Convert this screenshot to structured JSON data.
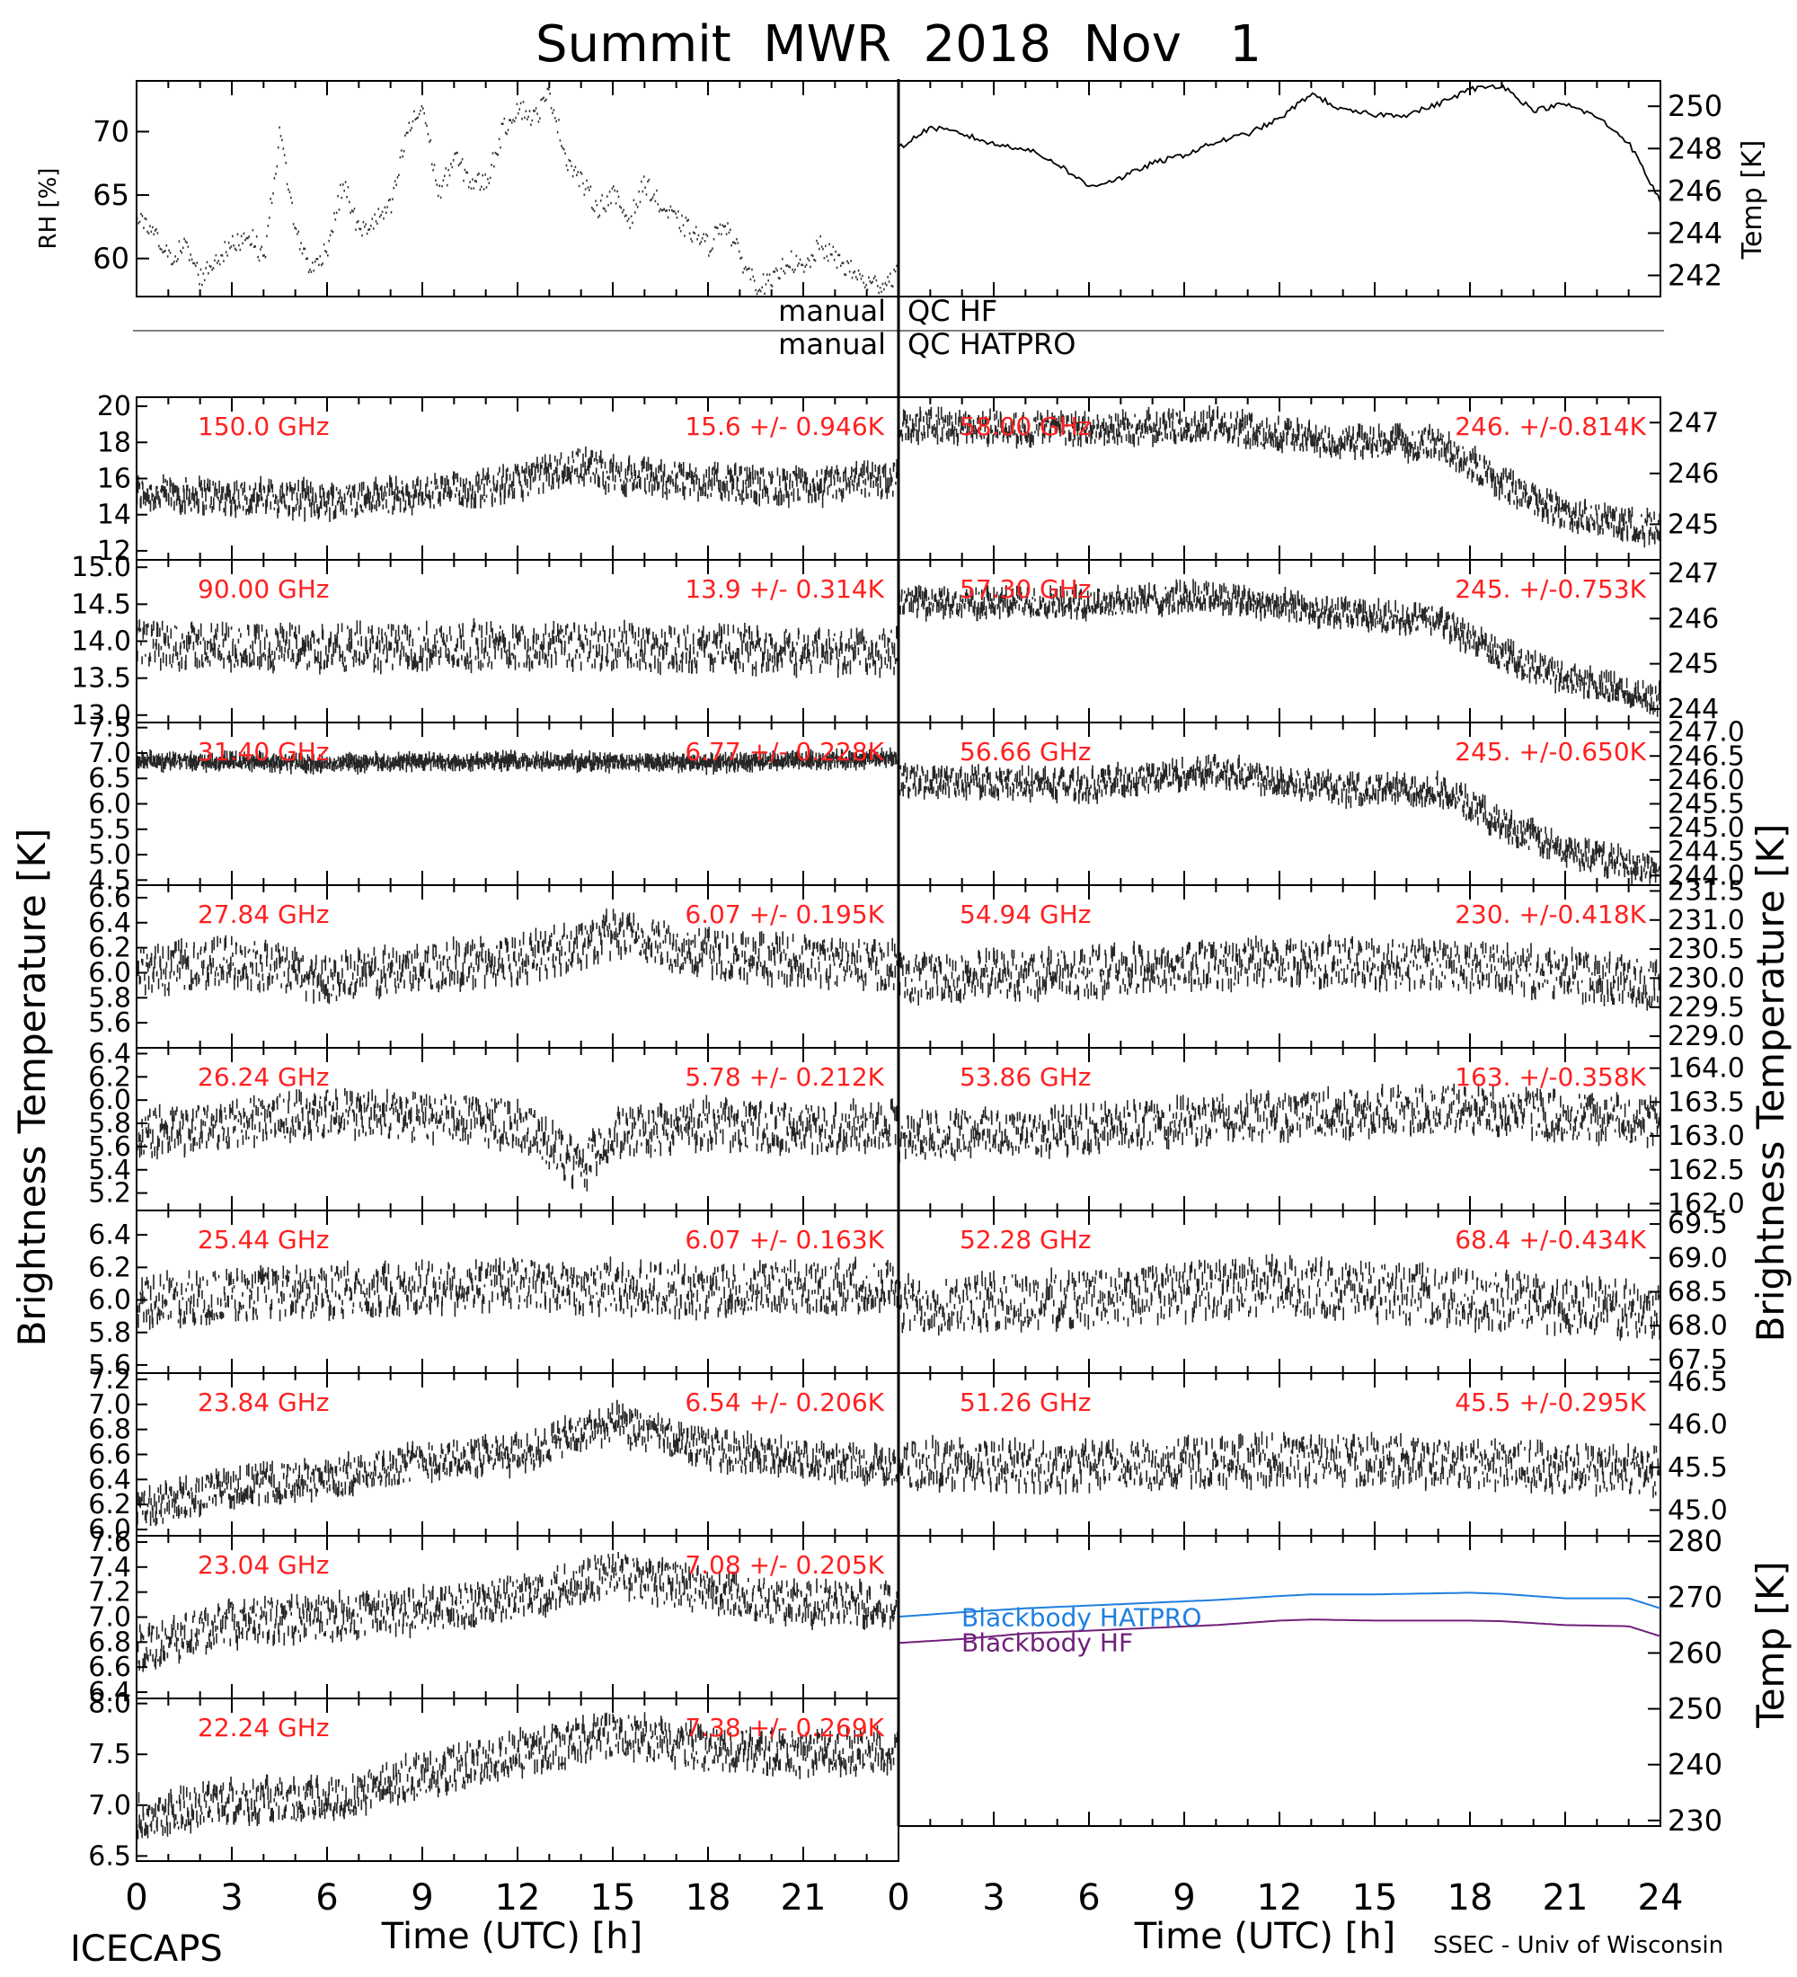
{
  "title": "Summit  MWR  2018  Nov   1",
  "footer_left": "ICECAPS",
  "footer_right": "SSEC - Univ of Wisconsin",
  "xlabel": "Time  (UTC)  [h]",
  "x_ticks_left": [
    "0",
    "3",
    "6",
    "9",
    "12",
    "15",
    "18",
    "21"
  ],
  "x_ticks_right": [
    "0",
    "3",
    "6",
    "9",
    "12",
    "15",
    "18",
    "21",
    "24"
  ],
  "side_label_left": "Brightness  Temperature  [K]",
  "side_label_right": "Brightness  Temperature  [K]",
  "rh_label": "RH [%]",
  "temp_label": "Temp [K]",
  "bb_temp_label": "Temp  [K]",
  "qc_hf": "QC HF",
  "qc_hatpro": "QC HATPRO",
  "qc_manual_1": "manual",
  "qc_manual_2": "manual",
  "colors": {
    "label_red": "#ff2020",
    "hatpro_blue": "#1f7fe0",
    "hf_purple": "#70207a",
    "trace": "#000000"
  },
  "chart_data": [
    {
      "id": "rh",
      "type": "line",
      "ylabel": "RH [%]",
      "ylim": [
        57,
        74
      ],
      "yticks": [
        "60",
        "65",
        "70"
      ],
      "xlim": [
        0,
        24
      ],
      "series": [
        {
          "x": [
            0,
            0.5,
            1,
            1.5,
            2,
            2.5,
            3,
            3.5,
            4,
            4.5,
            5,
            5.5,
            6,
            6.5,
            7,
            7.5,
            8,
            8.5,
            9,
            9.5,
            10,
            10.5,
            11,
            11.5,
            12,
            12.5,
            13,
            13.5,
            14,
            14.5,
            15,
            15.5,
            16,
            16.5,
            17,
            17.5,
            18,
            18.5,
            19,
            19.5,
            20,
            20.5,
            21,
            21.5,
            22,
            22.5,
            23,
            23.5,
            24
          ],
          "values": [
            63,
            62,
            60,
            61,
            58.5,
            60,
            61,
            62,
            60,
            70,
            62,
            59,
            61,
            66,
            62,
            63,
            64,
            70,
            72,
            65,
            68,
            66,
            66,
            70,
            72,
            71,
            73,
            68,
            66,
            64,
            65,
            63,
            66,
            64,
            63,
            62,
            61,
            63,
            60,
            58,
            58,
            60,
            59,
            61,
            60,
            59,
            58,
            58,
            59
          ]
        }
      ]
    },
    {
      "id": "temp",
      "type": "line",
      "ylabel": "Temp [K]",
      "ylim": [
        241,
        251.2
      ],
      "yticks": [
        "242",
        "244",
        "246",
        "248",
        "250"
      ],
      "xlim": [
        0,
        24
      ],
      "series": [
        {
          "x": [
            0,
            1,
            2,
            3,
            4,
            5,
            6,
            7,
            8,
            9,
            10,
            11,
            12,
            13,
            14,
            15,
            16,
            17,
            18,
            19,
            20,
            21,
            22,
            23,
            24
          ],
          "values": [
            248,
            249,
            248.7,
            248.2,
            248,
            247.3,
            246.2,
            246.6,
            247.3,
            247.7,
            248.3,
            248.7,
            249.4,
            250.6,
            249.8,
            249.6,
            249.6,
            250.1,
            250.8,
            251,
            249.8,
            250.1,
            249.5,
            248.3,
            245.5
          ]
        }
      ]
    },
    {
      "id": "ch-150-00",
      "type": "scatter",
      "side": "left",
      "row": 0,
      "freq_label": "150.0 GHz",
      "stats_label": "15.6  +/- 0.946K",
      "ylim": [
        11.5,
        20.5
      ],
      "yticks": [
        12,
        14,
        16,
        18,
        20
      ],
      "ytick_labels": [
        "12",
        "14",
        "16",
        "18",
        "20"
      ],
      "xlim": [
        0,
        24
      ],
      "trend": {
        "x": [
          0,
          3,
          6,
          9,
          12,
          14,
          15,
          18,
          21,
          24
        ],
        "values": [
          15.2,
          15,
          14.8,
          15.1,
          15.8,
          16.8,
          16.2,
          15.8,
          15.5,
          16
        ]
      },
      "noise": 0.946
    },
    {
      "id": "ch-90-00",
      "type": "scatter",
      "side": "left",
      "row": 1,
      "freq_label": "90.00 GHz",
      "stats_label": "13.9  +/- 0.314K",
      "ylim": [
        12.9,
        15.1
      ],
      "yticks": [
        13,
        13.5,
        14,
        14.5,
        15
      ],
      "ytick_labels": [
        "13.0",
        "13.5",
        "14.0",
        "14.5",
        "15.0"
      ],
      "xlim": [
        0,
        24
      ],
      "trend": {
        "x": [
          0,
          6,
          12,
          18,
          24
        ],
        "values": [
          13.95,
          13.9,
          13.95,
          13.9,
          13.85
        ]
      },
      "noise": 0.314
    },
    {
      "id": "ch-31-40",
      "type": "scatter",
      "side": "left",
      "row": 2,
      "freq_label": "31.40 GHz",
      "stats_label": "6.77  +/- 0.228K",
      "ylim": [
        4.4,
        7.6
      ],
      "yticks": [
        4.5,
        5,
        5.5,
        6,
        6.5,
        7,
        7.5
      ],
      "ytick_labels": [
        "4.5",
        "5.0",
        "5.5",
        "6.0",
        "6.5",
        "7.0",
        "7.5"
      ],
      "xlim": [
        0,
        24
      ],
      "trend": {
        "x": [
          0,
          6,
          12,
          18,
          24
        ],
        "values": [
          6.85,
          6.8,
          6.85,
          6.8,
          6.9
        ]
      },
      "noise": 0.1
    },
    {
      "id": "ch-27-84",
      "type": "scatter",
      "side": "left",
      "row": 3,
      "freq_label": "27.84 GHz",
      "stats_label": "6.07  +/- 0.195K",
      "ylim": [
        5.4,
        6.7
      ],
      "yticks": [
        5.6,
        5.8,
        6,
        6.2,
        6.4,
        6.6
      ],
      "ytick_labels": [
        "5.6",
        "5.8",
        "6.0",
        "6.2",
        "6.4",
        "6.6"
      ],
      "xlim": [
        0,
        24
      ],
      "trend": {
        "x": [
          0,
          3,
          6,
          9,
          12,
          15,
          18,
          21,
          24
        ],
        "values": [
          6,
          6.1,
          5.95,
          6.05,
          6.1,
          6.3,
          6.15,
          6.1,
          6.05
        ]
      },
      "noise": 0.195
    },
    {
      "id": "ch-26-24",
      "type": "scatter",
      "side": "left",
      "row": 4,
      "freq_label": "26.24 GHz",
      "stats_label": "5.78  +/- 0.212K",
      "ylim": [
        5.05,
        6.45
      ],
      "yticks": [
        5.2,
        5.4,
        5.6,
        5.8,
        6,
        6.2,
        6.4
      ],
      "ytick_labels": [
        "5.2",
        "5.4",
        "5.6",
        "5.8",
        "6.0",
        "6.2",
        "6.4"
      ],
      "xlim": [
        0,
        24
      ],
      "trend": {
        "x": [
          0,
          3,
          6,
          9,
          12,
          14,
          15,
          18,
          21,
          24
        ],
        "values": [
          5.7,
          5.8,
          5.9,
          5.85,
          5.8,
          5.4,
          5.7,
          5.8,
          5.75,
          5.8
        ]
      },
      "noise": 0.212
    },
    {
      "id": "ch-25-44",
      "type": "scatter",
      "side": "left",
      "row": 5,
      "freq_label": "25.44 GHz",
      "stats_label": "6.07  +/- 0.163K",
      "ylim": [
        5.55,
        6.55
      ],
      "yticks": [
        5.6,
        5.8,
        6,
        6.2,
        6.4
      ],
      "ytick_labels": [
        "5.6",
        "5.8",
        "6.0",
        "6.2",
        "6.4"
      ],
      "xlim": [
        0,
        24
      ],
      "trend": {
        "x": [
          0,
          6,
          12,
          18,
          24
        ],
        "values": [
          6,
          6.05,
          6.1,
          6.05,
          6.1
        ]
      },
      "noise": 0.163
    },
    {
      "id": "ch-23-84",
      "type": "scatter",
      "side": "left",
      "row": 6,
      "freq_label": "23.84 GHz",
      "stats_label": "6.54  +/- 0.206K",
      "ylim": [
        5.95,
        7.25
      ],
      "yticks": [
        6,
        6.2,
        6.4,
        6.6,
        6.8,
        7,
        7.2
      ],
      "ytick_labels": [
        "6.0",
        "6.2",
        "6.4",
        "6.6",
        "6.8",
        "7.0",
        "7.2"
      ],
      "xlim": [
        0,
        24
      ],
      "trend": {
        "x": [
          0,
          3,
          6,
          9,
          12,
          15,
          18,
          21,
          24
        ],
        "values": [
          6.15,
          6.35,
          6.4,
          6.55,
          6.6,
          6.85,
          6.65,
          6.55,
          6.5
        ]
      },
      "noise": 0.15
    },
    {
      "id": "ch-23-04",
      "type": "scatter",
      "side": "left",
      "row": 7,
      "freq_label": "23.04 GHz",
      "stats_label": "7.08  +/- 0.205K",
      "ylim": [
        6.35,
        7.65
      ],
      "yticks": [
        6.4,
        6.6,
        6.8,
        7,
        7.2,
        7.4,
        7.6
      ],
      "ytick_labels": [
        "6.4",
        "6.6",
        "6.8",
        "7.0",
        "7.2",
        "7.4",
        "7.6"
      ],
      "xlim": [
        0,
        24
      ],
      "trend": {
        "x": [
          0,
          3,
          6,
          9,
          12,
          15,
          18,
          21,
          24
        ],
        "values": [
          6.75,
          6.95,
          7,
          7.05,
          7.15,
          7.35,
          7.2,
          7.1,
          7.1
        ]
      },
      "noise": 0.18
    },
    {
      "id": "ch-22-24",
      "type": "scatter",
      "side": "left",
      "row": 8,
      "freq_label": "22.24 GHz",
      "stats_label": "7.38  +/- 0.269K",
      "ylim": [
        6.45,
        8.05
      ],
      "yticks": [
        6.5,
        7,
        7.5,
        8
      ],
      "ytick_labels": [
        "6.5",
        "7.0",
        "7.5",
        "8.0"
      ],
      "xlim": [
        0,
        24
      ],
      "trend": {
        "x": [
          0,
          3,
          6,
          9,
          12,
          15,
          18,
          21,
          24
        ],
        "values": [
          6.9,
          7.05,
          7.05,
          7.3,
          7.5,
          7.7,
          7.55,
          7.5,
          7.55
        ]
      },
      "noise": 0.22
    },
    {
      "id": "ch-58-00",
      "type": "scatter",
      "side": "right",
      "row": 0,
      "freq_label": "58.00 GHz",
      "stats_label": "246.  +/-0.814K",
      "ylim": [
        244.3,
        247.5
      ],
      "yticks": [
        245,
        246,
        247
      ],
      "ytick_labels": [
        "245",
        "246",
        "247"
      ],
      "xlim": [
        0,
        24
      ],
      "trend": {
        "x": [
          0,
          6,
          10,
          14,
          17,
          19,
          21,
          24
        ],
        "values": [
          246.95,
          246.85,
          246.95,
          246.6,
          246.6,
          245.8,
          245.2,
          244.9
        ]
      },
      "noise": 0.3
    },
    {
      "id": "ch-57-30",
      "type": "scatter",
      "side": "right",
      "row": 1,
      "freq_label": "57.30 GHz",
      "stats_label": "245.  +/-0.753K",
      "ylim": [
        243.7,
        247.3
      ],
      "yticks": [
        244,
        245,
        246,
        247
      ],
      "ytick_labels": [
        "244",
        "245",
        "246",
        "247"
      ],
      "xlim": [
        0,
        24
      ],
      "trend": {
        "x": [
          0,
          6,
          10,
          14,
          17,
          19,
          21,
          24
        ],
        "values": [
          246.35,
          246.35,
          246.5,
          246.1,
          245.95,
          245.2,
          244.7,
          244.2
        ]
      },
      "noise": 0.3
    },
    {
      "id": "ch-56-66",
      "type": "scatter",
      "side": "right",
      "row": 2,
      "freq_label": "56.66 GHz",
      "stats_label": "245.  +/-0.650K",
      "ylim": [
        243.8,
        247.2
      ],
      "yticks": [
        244,
        244.5,
        245,
        245.5,
        246,
        246.5,
        247
      ],
      "ytick_labels": [
        "244.0",
        "244.5",
        "245.0",
        "245.5",
        "246.0",
        "246.5",
        "247.0"
      ],
      "xlim": [
        0,
        24
      ],
      "trend": {
        "x": [
          0,
          6,
          10,
          14,
          17,
          19,
          21,
          24
        ],
        "values": [
          246,
          245.9,
          246.2,
          245.8,
          245.8,
          245.1,
          244.5,
          244.1
        ]
      },
      "noise": 0.3
    },
    {
      "id": "ch-54-94",
      "type": "scatter",
      "side": "right",
      "row": 3,
      "freq_label": "54.94 GHz",
      "stats_label": "230.  +/-0.418K",
      "ylim": [
        228.8,
        231.6
      ],
      "yticks": [
        229,
        229.5,
        230,
        230.5,
        231,
        231.5
      ],
      "ytick_labels": [
        "229.0",
        "229.5",
        "230.0",
        "230.5",
        "231.0",
        "231.5"
      ],
      "xlim": [
        0,
        24
      ],
      "trend": {
        "x": [
          0,
          6,
          12,
          18,
          24
        ],
        "values": [
          230,
          230.1,
          230.3,
          230.2,
          229.9
        ]
      },
      "noise": 0.418
    },
    {
      "id": "ch-53-86",
      "type": "scatter",
      "side": "right",
      "row": 4,
      "freq_label": "53.86 GHz",
      "stats_label": "163.  +/-0.358K",
      "ylim": [
        161.9,
        164.3
      ],
      "yticks": [
        162,
        162.5,
        163,
        163.5,
        164
      ],
      "ytick_labels": [
        "162.0",
        "162.5",
        "163.0",
        "163.5",
        "164.0"
      ],
      "xlim": [
        0,
        24
      ],
      "trend": {
        "x": [
          0,
          6,
          12,
          18,
          24
        ],
        "values": [
          163,
          163.1,
          163.3,
          163.4,
          163.2
        ]
      },
      "noise": 0.358
    },
    {
      "id": "ch-52-28",
      "type": "scatter",
      "side": "right",
      "row": 5,
      "freq_label": "52.28 GHz",
      "stats_label": "68.4  +/-0.434K",
      "ylim": [
        67.3,
        69.7
      ],
      "yticks": [
        67.5,
        68,
        68.5,
        69,
        69.5
      ],
      "ytick_labels": [
        "67.5",
        "68.0",
        "68.5",
        "69.0",
        "69.5"
      ],
      "xlim": [
        0,
        24
      ],
      "trend": {
        "x": [
          0,
          6,
          12,
          18,
          24
        ],
        "values": [
          68.3,
          68.4,
          68.6,
          68.4,
          68.2
        ]
      },
      "noise": 0.434
    },
    {
      "id": "ch-51-26",
      "type": "scatter",
      "side": "right",
      "row": 6,
      "freq_label": "51.26 GHz",
      "stats_label": "45.5  +/-0.295K",
      "ylim": [
        44.7,
        46.6
      ],
      "yticks": [
        45,
        45.5,
        46,
        46.5
      ],
      "ytick_labels": [
        "45.0",
        "45.5",
        "46.0",
        "46.5"
      ],
      "xlim": [
        0,
        24
      ],
      "trend": {
        "x": [
          0,
          6,
          12,
          18,
          24
        ],
        "values": [
          45.55,
          45.5,
          45.6,
          45.55,
          45.45
        ]
      },
      "noise": 0.295
    },
    {
      "id": "blackbody",
      "type": "line",
      "ylabel": "Temp  [K]",
      "ylim": [
        229,
        281
      ],
      "yticks": [
        "230",
        "240",
        "250",
        "260",
        "270",
        "280"
      ],
      "xlim": [
        0,
        24
      ],
      "series": [
        {
          "name": "Blackbody  HATPRO",
          "x": [
            0,
            2,
            4,
            6,
            8,
            10,
            12,
            13,
            15,
            18,
            19,
            21,
            23,
            24
          ],
          "values": [
            266.5,
            267.3,
            268,
            268.5,
            269,
            269.5,
            270.2,
            270.5,
            270.5,
            270.8,
            270.6,
            269.8,
            269.8,
            268
          ]
        },
        {
          "name": "Blackbody  HF",
          "x": [
            0,
            2,
            4,
            6,
            8,
            10,
            12,
            13,
            15,
            18,
            19,
            21,
            23,
            24
          ],
          "values": [
            261.8,
            262.5,
            263.5,
            264,
            264.5,
            265,
            265.8,
            266,
            265.8,
            265.8,
            265.7,
            265,
            264.8,
            263
          ]
        }
      ]
    }
  ]
}
